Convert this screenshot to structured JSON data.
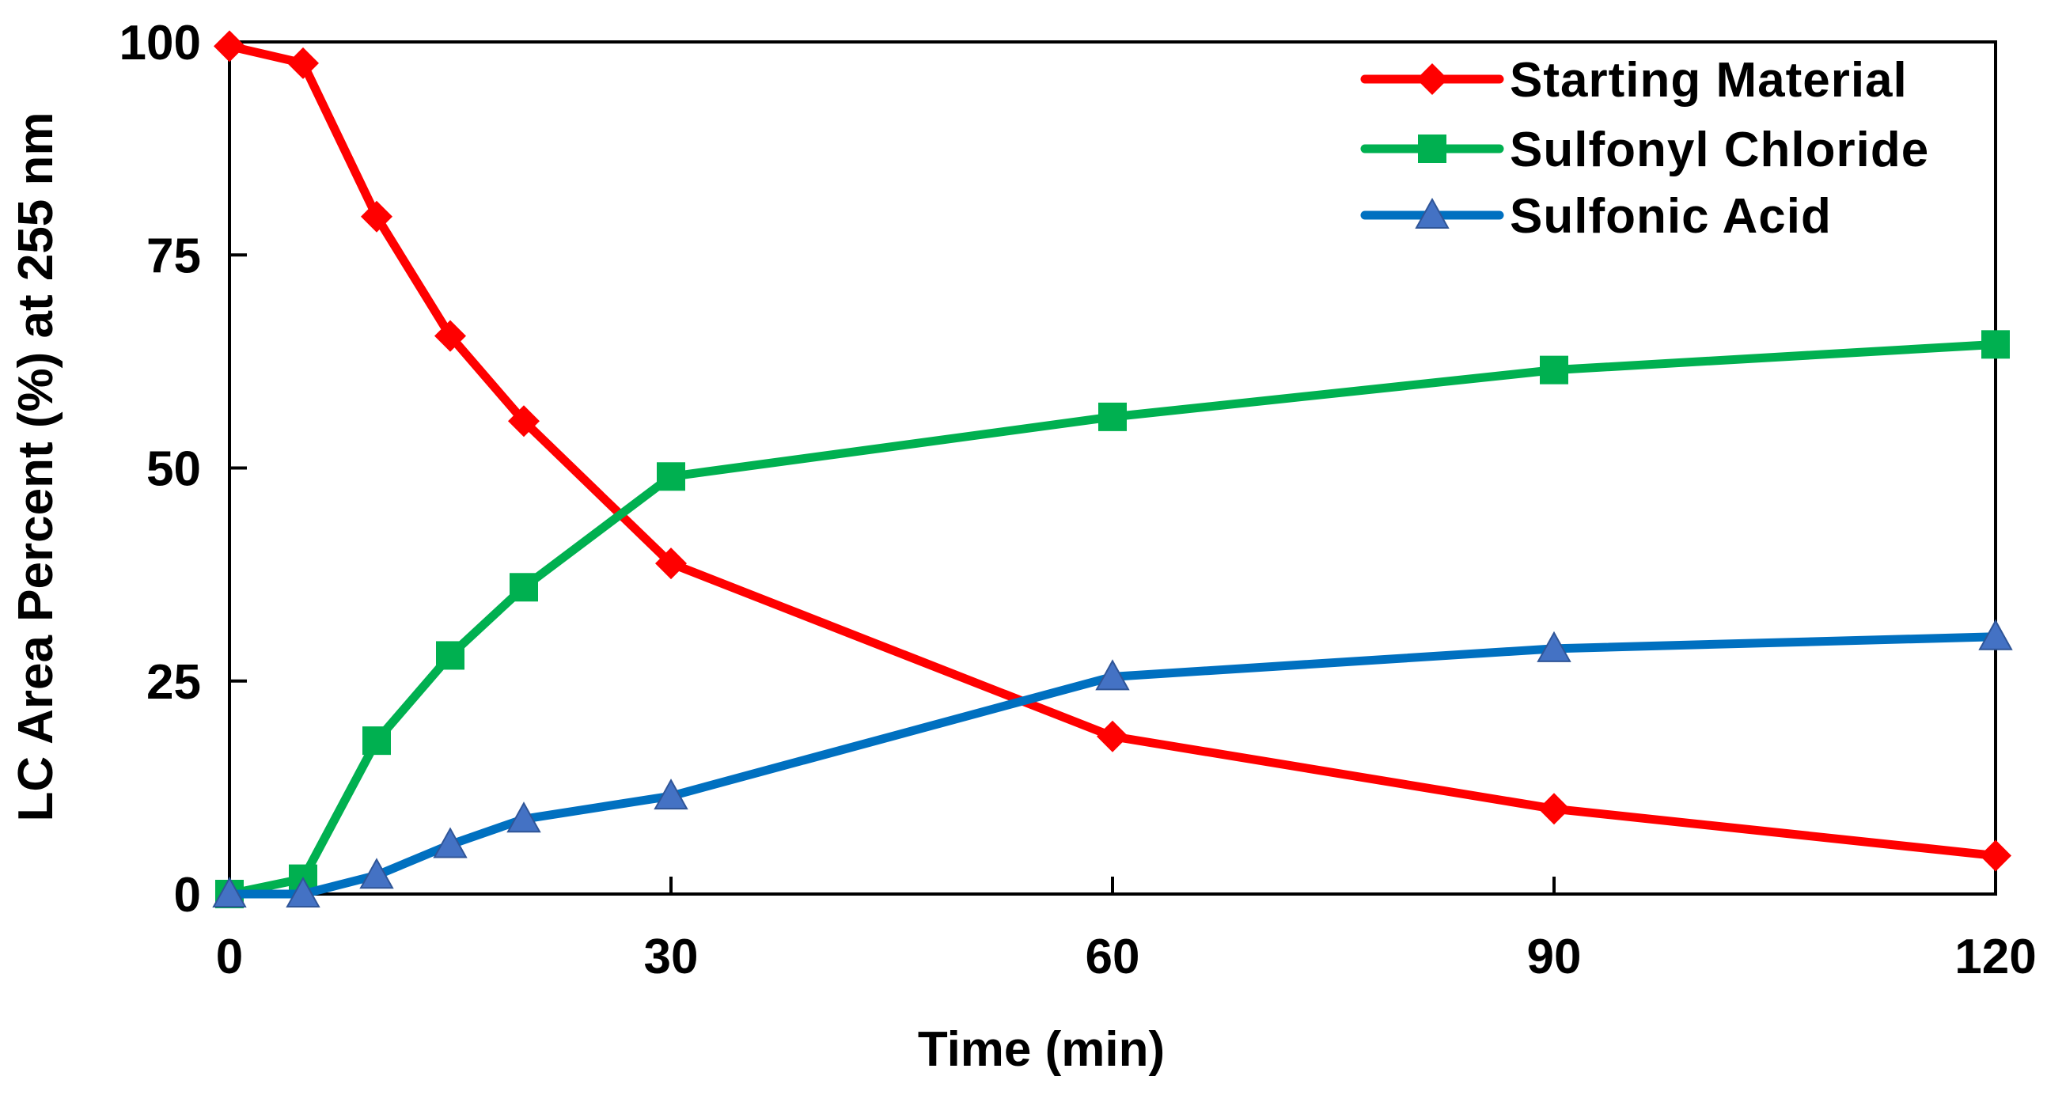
{
  "chart_data": {
    "type": "line",
    "title": "",
    "xlabel": "Time (min)",
    "ylabel": "LC Area Percent (%) at 255 nm",
    "xlim": [
      0,
      120
    ],
    "ylim": [
      0,
      100
    ],
    "x_ticks": [
      0,
      30,
      60,
      90,
      120
    ],
    "y_ticks": [
      0,
      25,
      50,
      75,
      100
    ],
    "x_tick_labels": [
      "0",
      "30",
      "60",
      "90",
      "120"
    ],
    "y_tick_labels": [
      "0",
      "25",
      "50",
      "75",
      "100"
    ],
    "legend_position": "top-right",
    "grid": false,
    "series": [
      {
        "name": "Starting Material",
        "color": "#ff0000",
        "marker": "diamond",
        "x": [
          0,
          5,
          10,
          15,
          20,
          30,
          60,
          90,
          120
        ],
        "y": [
          99.5,
          97.5,
          79.5,
          65.5,
          55.5,
          38.8,
          18.5,
          10.0,
          4.5
        ]
      },
      {
        "name": "Sulfonyl Chloride",
        "color": "#00b050",
        "marker": "square",
        "x": [
          0,
          5,
          10,
          15,
          20,
          30,
          60,
          90,
          120
        ],
        "y": [
          0,
          1.8,
          18.0,
          28.0,
          36.0,
          49.0,
          56.0,
          61.5,
          64.5
        ]
      },
      {
        "name": "Sulfonic Acid",
        "color": "#0070c0",
        "marker_color": "#4472c4",
        "marker": "triangle",
        "x": [
          0,
          5,
          10,
          15,
          20,
          30,
          60,
          90,
          120
        ],
        "y": [
          0,
          0,
          2.2,
          5.8,
          8.8,
          11.5,
          25.5,
          28.8,
          30.2
        ]
      }
    ]
  }
}
